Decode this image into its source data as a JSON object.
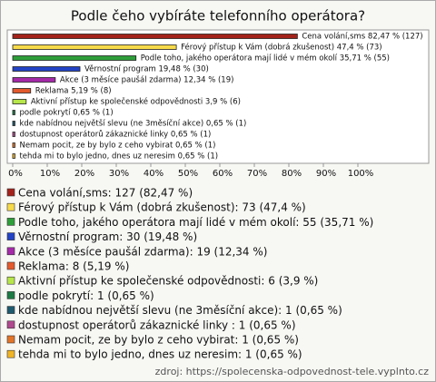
{
  "chart_data": {
    "type": "bar",
    "orientation": "horizontal",
    "title": "Podle čeho vybíráte telefonního operátora?",
    "categories": [
      "Cena volání,sms",
      "Férový přístup k Vám (dobrá zkušenost)",
      "Podle toho, jakého operátora mají lidé v mém okolí",
      "Věrnostní program",
      "Akce (3 měsíce paušál zdarma)",
      "Reklama",
      "Aktivní přístup ke společenské odpovědnosti",
      "podle pokrytí",
      "kde nabídnou největší slevu (ne 3měsíční akce)",
      "dostupnost operátorů zákaznické linky",
      "Nemam pocit, ze by bylo z ceho vybirat",
      "tehda mi to bylo jedno, dnes uz neresim"
    ],
    "values": [
      82.47,
      47.4,
      35.71,
      19.48,
      12.34,
      5.19,
      3.9,
      0.65,
      0.65,
      0.65,
      0.65,
      0.65
    ],
    "value_labels": [
      "Cena volání,sms 82,47 % (127)",
      "Férový přístup k Vám (dobrá zkušenost) 47,4 % (73)",
      "Podle toho, jakého operátora mají lidé v mém okolí 35,71 % (55)",
      "Věrnostní program 19,48 % (30)",
      "Akce (3 měsíce paušál zdarma) 12,34 % (19)",
      "Reklama 5,19 % (8)",
      "Aktivní přístup ke společenské odpovědnosti 3,9 % (6)",
      "podle pokrytí 0,65 % (1)",
      "kde nabídnou největší slevu (ne 3měsíční akce) 0,65 % (1)",
      "dostupnost operátorů zákaznické linky  0,65 % (1)",
      "Nemam pocit, ze by bylo z ceho vybirat 0,65 % (1)",
      "tehda mi to bylo jedno, dnes uz neresim 0,65 % (1)"
    ],
    "legend_labels": [
      "Cena volání,sms: 127 (82,47 %)",
      "Férový přístup k Vám (dobrá zkušenost): 73 (47,4 %)",
      "Podle toho, jakého operátora mají lidé v mém okolí: 55 (35,71 %)",
      "Věrnostní program: 30 (19,48 %)",
      "Akce (3 měsíce paušál zdarma): 19 (12,34 %)",
      "Reklama: 8 (5,19 %)",
      "Aktivní přístup ke společenské odpovědnosti: 6 (3,9 %)",
      "podle pokrytí: 1 (0,65 %)",
      "kde nabídnou největší slevu (ne 3měsíční akce): 1 (0,65 %)",
      "dostupnost operátorů zákaznické linky : 1 (0,65 %)",
      "Nemam pocit, ze by bylo z ceho vybirat: 1 (0,65 %)",
      "tehda mi to bylo jedno, dnes uz neresim: 1 (0,65 %)"
    ],
    "colors": [
      "#a3231c",
      "#f7da4a",
      "#2e9e3a",
      "#2343c4",
      "#a42aa8",
      "#e35a2e",
      "#b7e64a",
      "#1e7a45",
      "#1f5a6e",
      "#b04a8e",
      "#e2752a",
      "#f0b428"
    ],
    "xlim": [
      0,
      100
    ],
    "xticks": [
      {
        "value": 0,
        "label": "0%"
      },
      {
        "value": 10,
        "label": "10%"
      },
      {
        "value": 20,
        "label": "20%"
      },
      {
        "value": 30,
        "label": "30%"
      },
      {
        "value": 40,
        "label": "40%"
      },
      {
        "value": 50,
        "label": "50%"
      },
      {
        "value": 60,
        "label": "60%"
      },
      {
        "value": 70,
        "label": "70%"
      },
      {
        "value": 80,
        "label": "80%"
      },
      {
        "value": 90,
        "label": "90%"
      },
      {
        "value": 100,
        "label": "100%"
      }
    ],
    "source": "zdroj: https://spolecenska-odpovednost-tele.vyplnto.cz"
  }
}
